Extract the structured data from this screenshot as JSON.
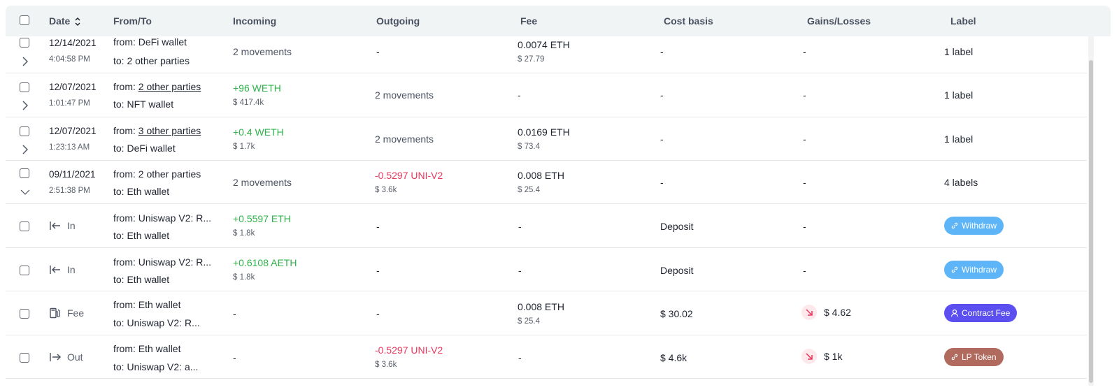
{
  "header": {
    "date": "Date",
    "from_to": "From/To",
    "incoming": "Incoming",
    "outgoing": "Outgoing",
    "fee": "Fee",
    "cost_basis": "Cost basis",
    "gains_losses": "Gains/Losses",
    "label": "Label",
    "sort_icon": "sort-updown-icon"
  },
  "rows": [
    {
      "date": "12/14/2021",
      "time": "4:04:58 PM",
      "from_prefix": "from: ",
      "from": "DeFi wallet",
      "to_prefix": "to: ",
      "to": "2 other parties",
      "incoming": "2 movements",
      "outgoing": "-",
      "fee": "0.0074 ETH",
      "fee_usd": "$ 27.79",
      "cost_basis": "-",
      "gains": "-",
      "label": "1 label",
      "expand_icon": "chevron-right-icon"
    },
    {
      "date": "12/07/2021",
      "time": "1:01:47 PM",
      "from_prefix": "from: ",
      "from": "2 other parties",
      "to_prefix": "to: ",
      "to": "NFT wallet",
      "incoming": "+96 WETH",
      "incoming_usd": "$ 417.4k",
      "outgoing": "2 movements",
      "fee": "-",
      "cost_basis": "-",
      "gains": "-",
      "label": "1 label",
      "expand_icon": "chevron-right-icon"
    },
    {
      "date": "12/07/2021",
      "time": "1:23:13 AM",
      "from_prefix": "from: ",
      "from": "3 other parties",
      "to_prefix": "to: ",
      "to": "DeFi wallet",
      "incoming": "+0.4 WETH",
      "incoming_usd": "$ 1.7k",
      "outgoing": "2 movements",
      "fee": "0.0169 ETH",
      "fee_usd": "$ 73.4",
      "cost_basis": "-",
      "gains": "-",
      "label": "1 label",
      "expand_icon": "chevron-right-icon"
    },
    {
      "date": "09/11/2021",
      "time": "2:51:38 PM",
      "from_prefix": "from: ",
      "from": "2 other parties",
      "to_prefix": "to: ",
      "to": "Eth wallet",
      "incoming": "2 movements",
      "outgoing": "-0.5297 UNI-V2",
      "outgoing_usd": "$ 3.6k",
      "fee": "0.008 ETH",
      "fee_usd": "$ 25.4",
      "cost_basis": "-",
      "gains": "-",
      "label": "4 labels",
      "expand_icon": "chevron-down-icon"
    },
    {
      "type": "In",
      "type_icon": "arrow-in-icon",
      "from_prefix": "from: ",
      "from": "Uniswap V2: R...",
      "to_prefix": "to: ",
      "to": "Eth wallet",
      "incoming": "+0.5597 ETH",
      "incoming_usd": "$ 1.8k",
      "outgoing": "-",
      "fee": "-",
      "cost_basis": "Deposit",
      "gains": "-",
      "badge": "Withdraw",
      "badge_icon": "link-icon"
    },
    {
      "type": "In",
      "type_icon": "arrow-in-icon",
      "from_prefix": "from: ",
      "from": "Uniswap V2: R...",
      "to_prefix": "to: ",
      "to": "Eth wallet",
      "incoming": "+0.6108 AETH",
      "incoming_usd": "$ 1.8k",
      "outgoing": "-",
      "fee": "-",
      "cost_basis": "Deposit",
      "gains": "-",
      "badge": "Withdraw",
      "badge_icon": "link-icon"
    },
    {
      "type": "Fee",
      "type_icon": "gas-pump-icon",
      "from_prefix": "from: ",
      "from": "Eth wallet",
      "to_prefix": "to: ",
      "to": "Uniswap V2: R...",
      "incoming": "-",
      "outgoing": "-",
      "fee": "0.008 ETH",
      "fee_usd": "$ 25.4",
      "cost_basis": "$ 30.02",
      "gains": "$ 4.62",
      "gains_icon": "trend-down-icon",
      "badge": "Contract Fee",
      "badge_icon": "person-icon"
    },
    {
      "type": "Out",
      "type_icon": "arrow-out-icon",
      "from_prefix": "from: ",
      "from": "Eth wallet",
      "to_prefix": "to: ",
      "to": "Uniswap V2: a...",
      "incoming": "-",
      "outgoing": "-0.5297 UNI-V2",
      "outgoing_usd": "$ 3.6k",
      "fee": "-",
      "cost_basis": "$ 4.6k",
      "gains": "$ 1k",
      "gains_icon": "trend-down-icon",
      "badge": "LP Token",
      "badge_icon": "link-icon"
    }
  ],
  "colors": {
    "positive": "#2fb34a",
    "negative": "#e8385e",
    "withdraw_badge": "#5db5f7",
    "contract_fee_badge": "#5b4ff0",
    "lp_token_badge": "#b06a5e"
  }
}
